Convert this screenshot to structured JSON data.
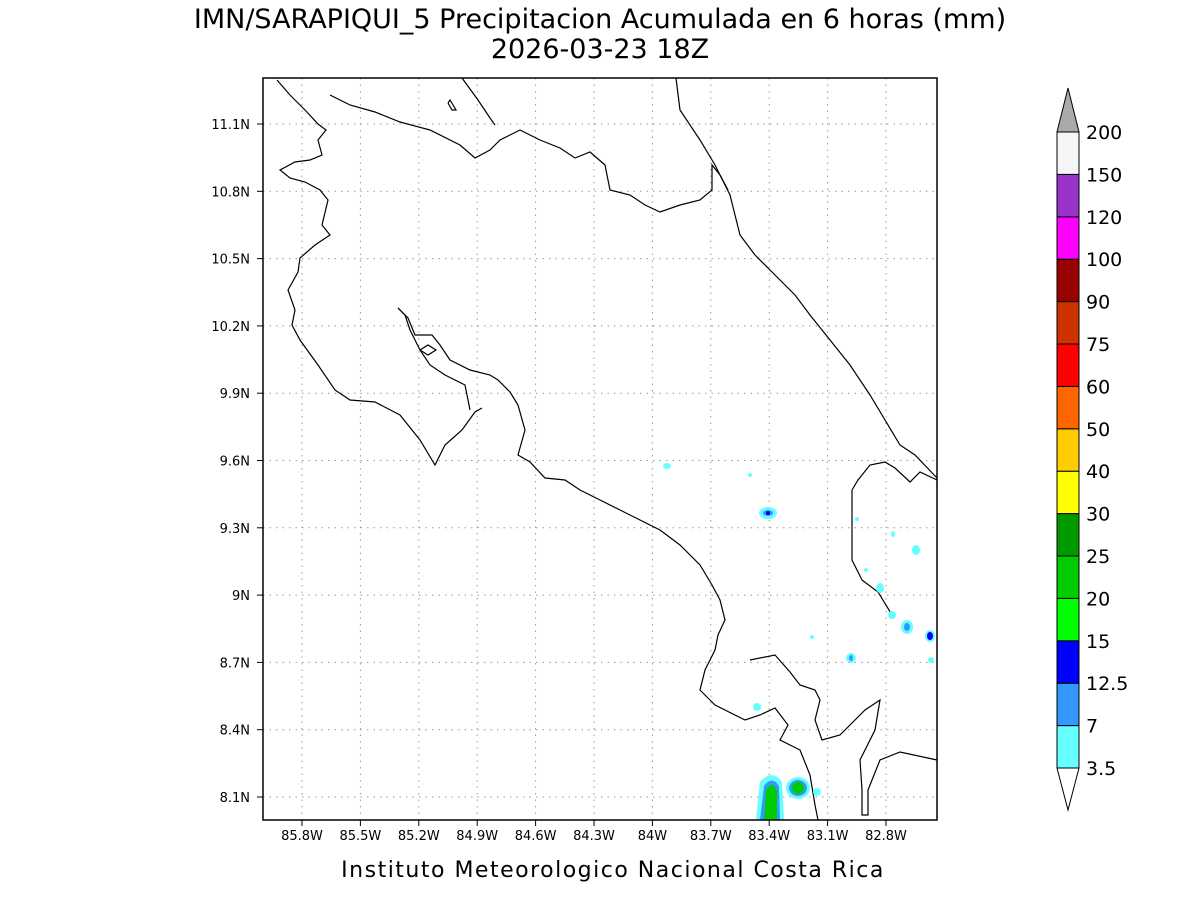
{
  "title": "IMN/SARAPIQUI_5 Precipitacion Acumulada en 6 horas (mm)",
  "subtitle": "2026-03-23 18Z",
  "footer": "Instituto Meteorologico Nacional Costa Rica",
  "lon_ticks": [
    "85.8W",
    "85.5W",
    "85.2W",
    "84.9W",
    "84.6W",
    "84.3W",
    "84W",
    "83.7W",
    "83.4W",
    "83.1W",
    "82.8W"
  ],
  "lat_ticks": [
    "11.1N",
    "10.8N",
    "10.5N",
    "10.2N",
    "9.9N",
    "9.6N",
    "9.3N",
    "9N",
    "8.7N",
    "8.4N",
    "8.1N"
  ],
  "colorbar": {
    "levels": [
      3.5,
      7,
      12.5,
      15,
      20,
      25,
      30,
      40,
      50,
      60,
      75,
      90,
      100,
      120,
      150,
      200
    ],
    "colors": [
      "#66ffff",
      "#3399ff",
      "#0000ff",
      "#00ff00",
      "#00cc00",
      "#009900",
      "#ffff00",
      "#ffcc00",
      "#ff6600",
      "#ff0000",
      "#cc3300",
      "#990000",
      "#ff00ff",
      "#9933cc",
      "#f5f5f5"
    ],
    "under_color": "#ffffff",
    "over_color": "#aaaaaa"
  }
}
